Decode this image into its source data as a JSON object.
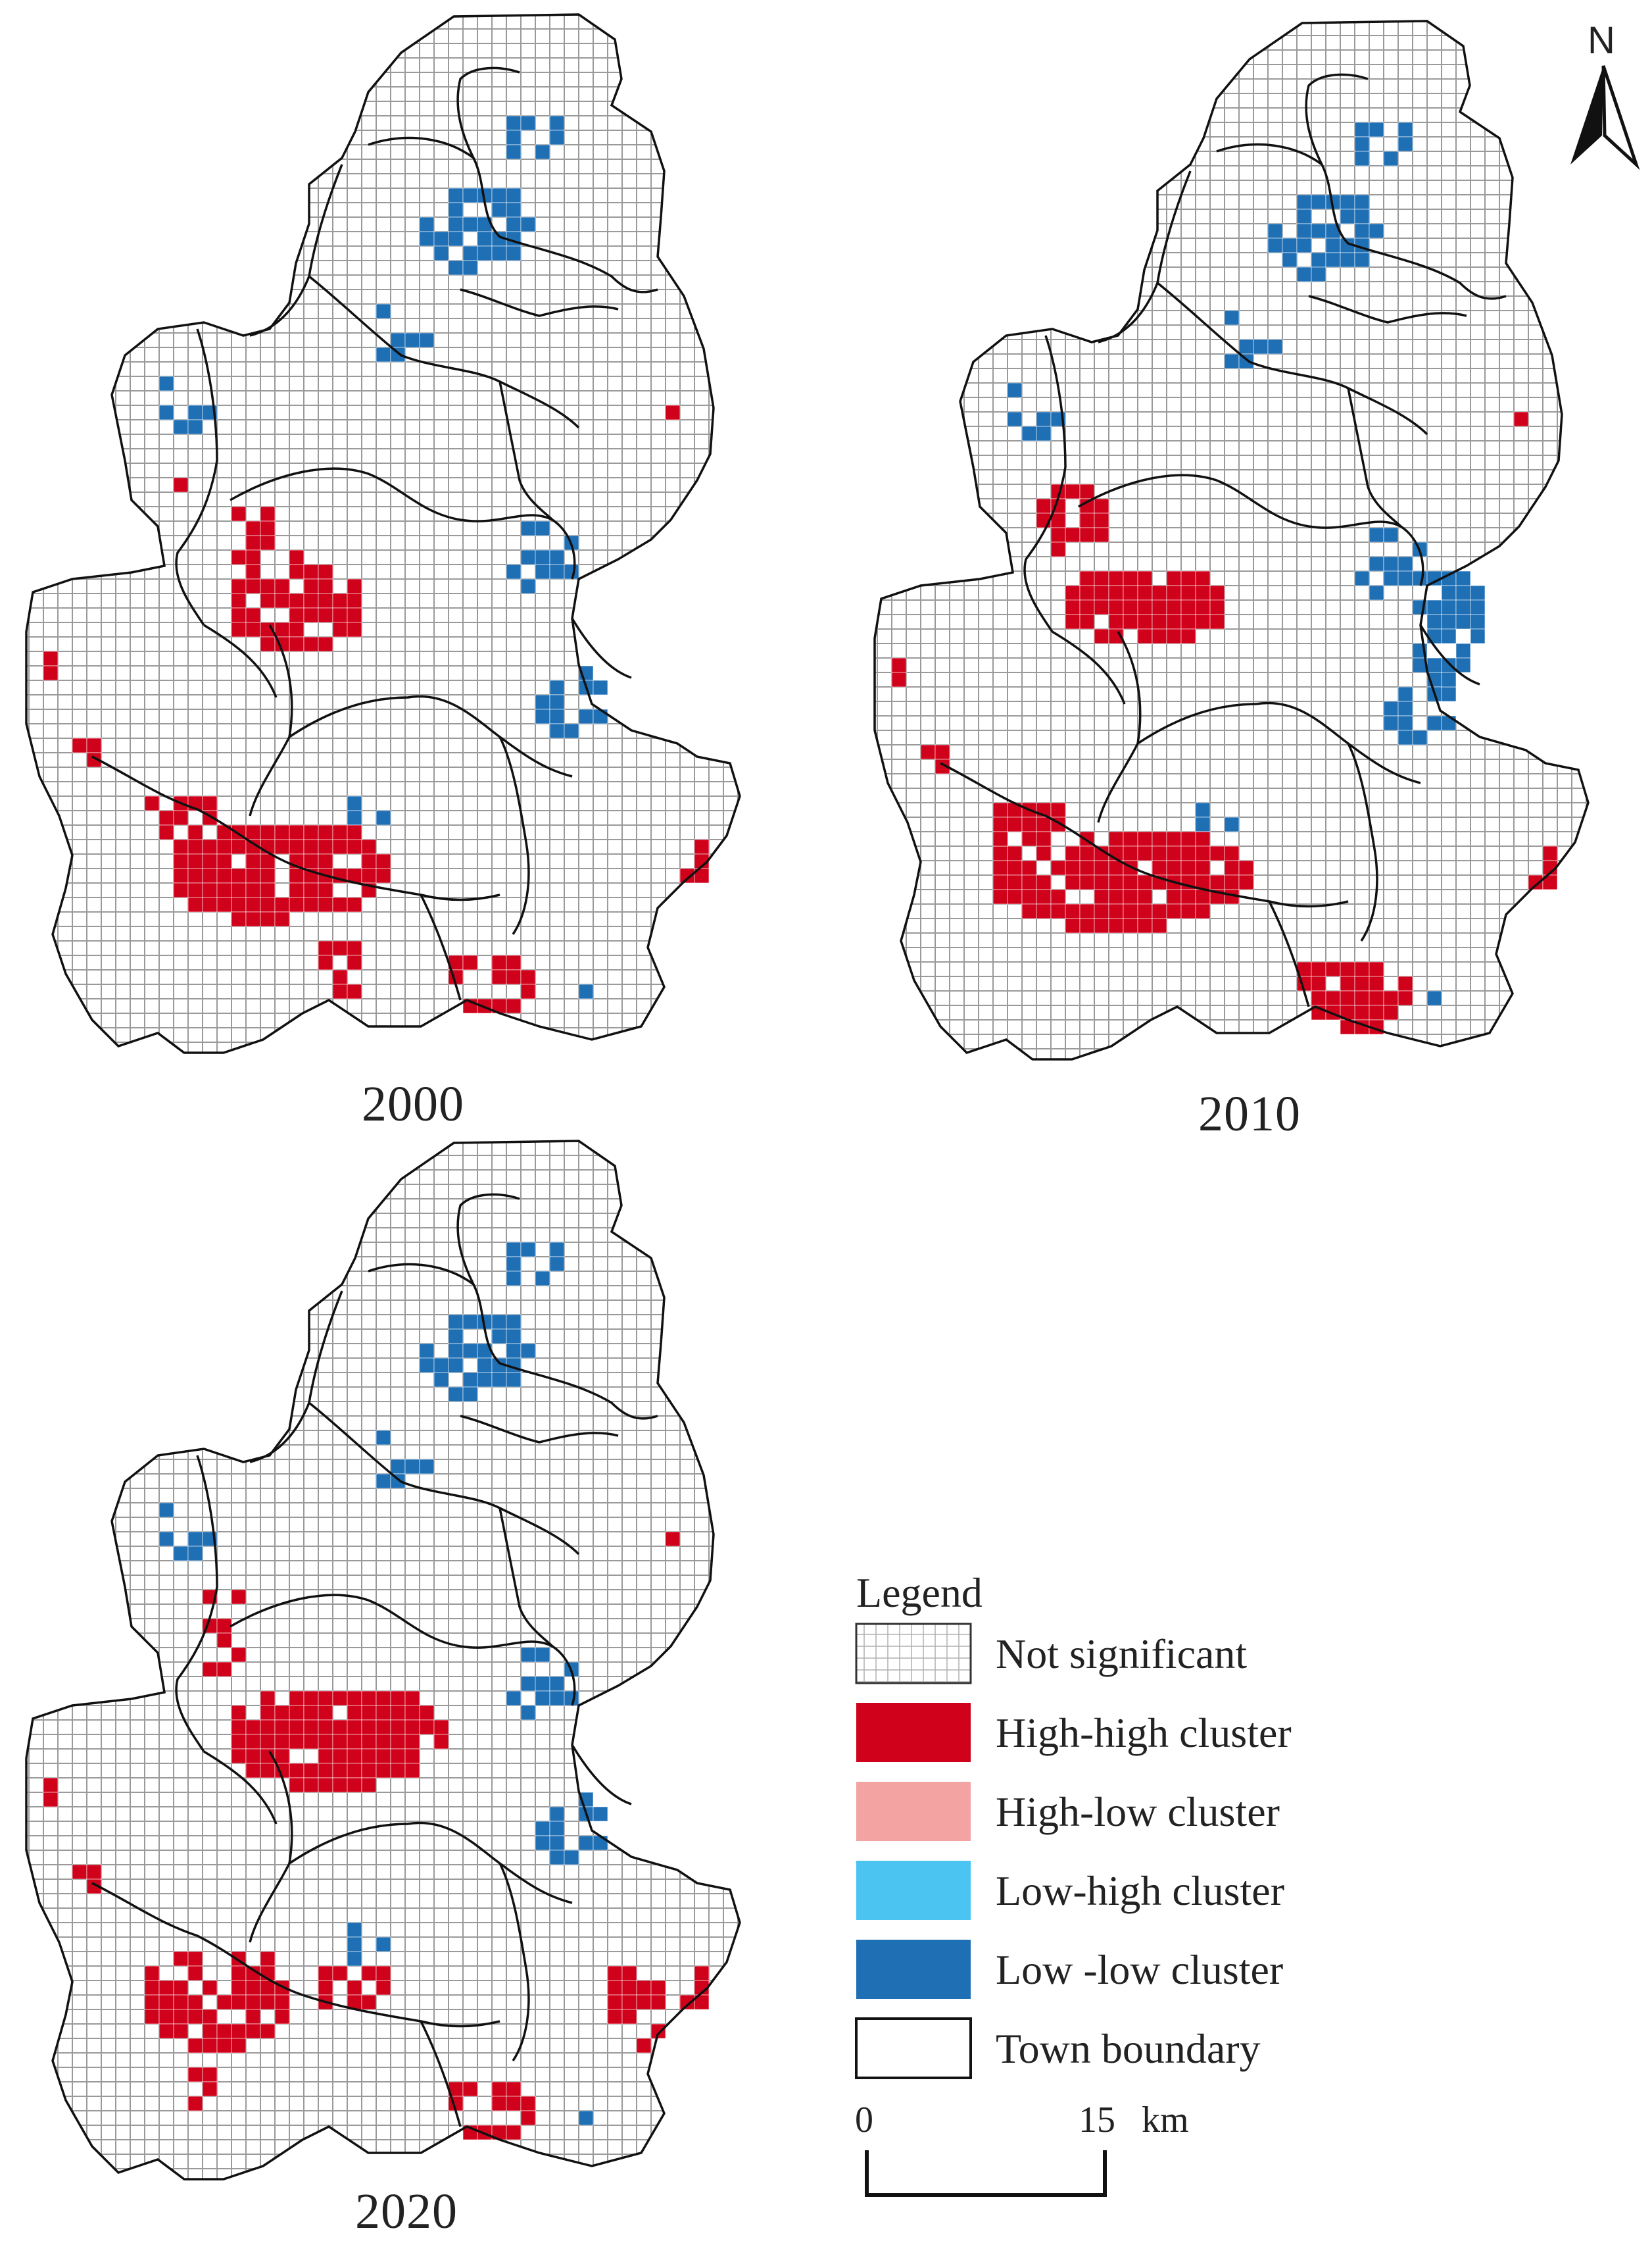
{
  "maps": [
    {
      "year": "2000"
    },
    {
      "year": "2010"
    },
    {
      "year": "2020"
    }
  ],
  "legend": {
    "title": "Legend",
    "items": [
      {
        "label": "Not significant",
        "fill": "#ffffff",
        "grid": true
      },
      {
        "label": "High-high cluster",
        "fill": "#d0021b"
      },
      {
        "label": "High-low cluster",
        "fill": "#f4a3a3"
      },
      {
        "label": "Low-high cluster",
        "fill": "#4cc4f2"
      },
      {
        "label": "Low -low cluster",
        "fill": "#1f6fb5"
      },
      {
        "label": "Town boundary",
        "fill": "#ffffff"
      }
    ]
  },
  "scale_bar": {
    "start": "0",
    "end": "15",
    "unit": "km"
  },
  "north_arrow": {
    "label": "N"
  },
  "colors": {
    "grid": "#9a9a9a",
    "boundary": "#111111",
    "high_high": "#d0021b",
    "high_low": "#f4a3a3",
    "low_high": "#4cc4f2",
    "low_low": "#1f6fb5"
  }
}
